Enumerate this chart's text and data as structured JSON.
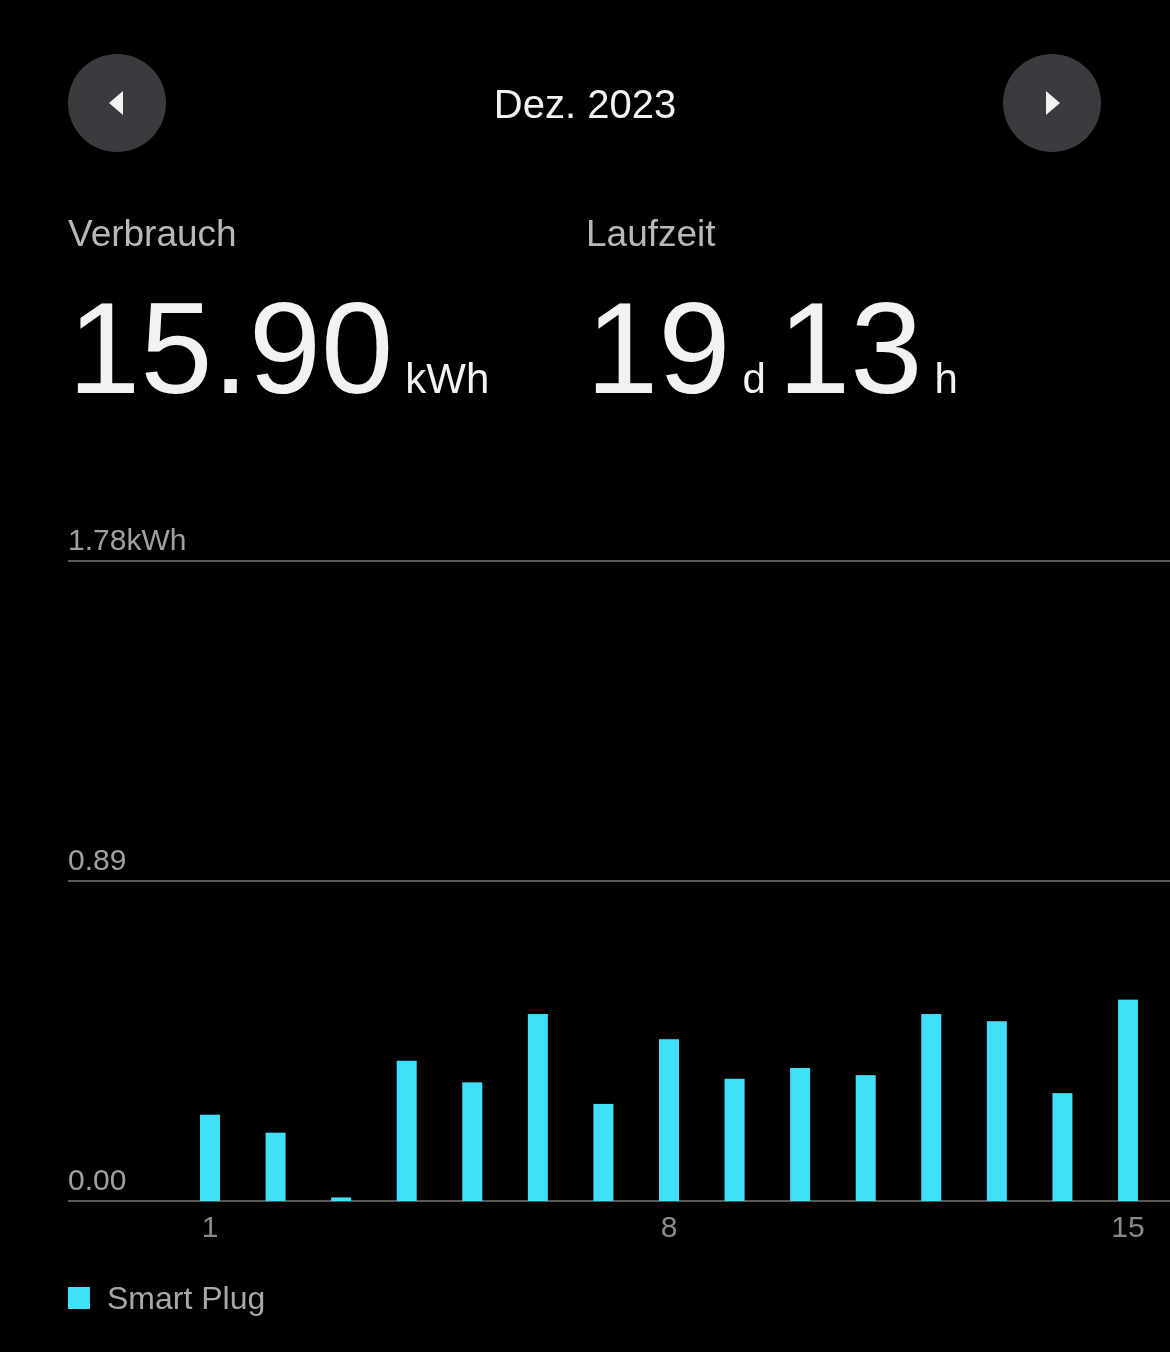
{
  "chart_data": {
    "type": "bar",
    "title": "Dez. 2023",
    "annotations": [
      "Verbrauch",
      "15.90kWh",
      "Laufzeit",
      "19d13h"
    ],
    "categories": [
      "1",
      null,
      null,
      null,
      null,
      null,
      null,
      "8",
      null,
      null,
      null,
      null,
      null,
      null,
      "15"
    ],
    "series": [
      {
        "name": "Smart Plug",
        "color": "#40e0f8",
        "values": [
          0.24,
          0.19,
          0.01,
          0.39,
          0.33,
          0.52,
          0.27,
          0.45,
          0.34,
          0.37,
          0.35,
          0.52,
          0.5,
          0.3,
          0.56
        ]
      }
    ],
    "ylim": [
      0,
      1.78
    ],
    "yticks": [
      {
        "value": 0,
        "label": "0.00"
      },
      0.89,
      {
        "value": 1.78,
        "label": "1.78kWh"
      }
    ],
    "grid": "y",
    "legend": "bottom left"
  }
}
